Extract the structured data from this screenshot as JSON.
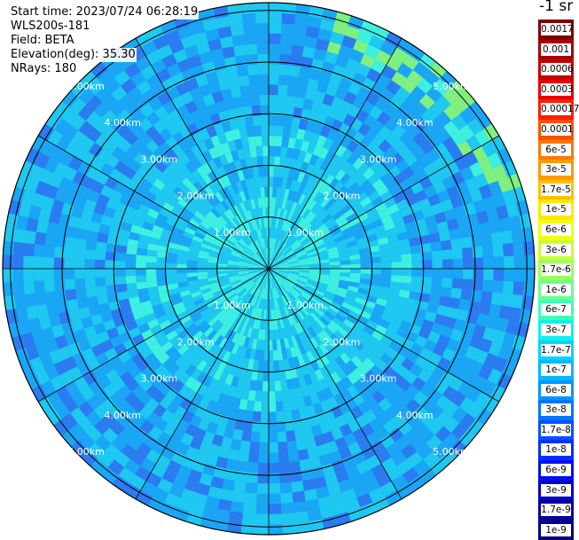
{
  "info": {
    "start_time": "Start time: 2023/07/24 06:28:19",
    "instrument": "WLS200s-181",
    "field": "Field: BETA",
    "elevation": "Elevation(deg): 35.30",
    "nrays": "NRays: 180"
  },
  "colorbar": {
    "unit": "-1 sr",
    "ticks": [
      {
        "label": "0.0017",
        "color": "#800000"
      },
      {
        "label": "0.001",
        "color": "#a50000"
      },
      {
        "label": "0.0006",
        "color": "#c80000"
      },
      {
        "label": "0.0003",
        "color": "#e60000"
      },
      {
        "label": "0.00017",
        "color": "#ff1e00"
      },
      {
        "label": "0.0001",
        "color": "#ff5000"
      },
      {
        "label": "6e-5",
        "color": "#ff7800"
      },
      {
        "label": "3e-5",
        "color": "#ff9a00"
      },
      {
        "label": "1.7e-5",
        "color": "#ffc000"
      },
      {
        "label": "1e-5",
        "color": "#ffe800"
      },
      {
        "label": "6e-6",
        "color": "#f0ff10"
      },
      {
        "label": "3e-6",
        "color": "#c8ff30"
      },
      {
        "label": "1.7e-6",
        "color": "#9cff5a"
      },
      {
        "label": "1e-6",
        "color": "#6cff8c"
      },
      {
        "label": "6e-7",
        "color": "#3cffba"
      },
      {
        "label": "3e-7",
        "color": "#10f0e8"
      },
      {
        "label": "1.7e-7",
        "color": "#00d4ff"
      },
      {
        "label": "1e-7",
        "color": "#00b8ff"
      },
      {
        "label": "6e-8",
        "color": "#0096ff"
      },
      {
        "label": "3e-8",
        "color": "#0074ff"
      },
      {
        "label": "1.7e-8",
        "color": "#0052ff"
      },
      {
        "label": "1e-8",
        "color": "#0030ff"
      },
      {
        "label": "6e-9",
        "color": "#0010f0"
      },
      {
        "label": "3e-9",
        "color": "#0000c8"
      },
      {
        "label": "1.7e-9",
        "color": "#0000a0"
      },
      {
        "label": "1e-9",
        "color": "#000080"
      }
    ]
  },
  "range_rings": [
    {
      "label": "1.00km",
      "range_km": 1
    },
    {
      "label": "2.00km",
      "range_km": 2
    },
    {
      "label": "3.00km",
      "range_km": 3
    },
    {
      "label": "4.00km",
      "range_km": 4
    },
    {
      "label": "5.00km",
      "range_km": 5
    }
  ],
  "max_range_km": 5.15,
  "azimuth_spokes_deg": [
    0,
    30,
    60,
    90,
    120,
    150,
    180,
    210,
    240,
    270,
    300,
    330
  ],
  "palette": {
    "center": "#3ef0e0",
    "mid": "#1ec8f0",
    "outer": "#1aa6f4",
    "dark": "#2a7cf0",
    "hot": "#80f080"
  }
}
